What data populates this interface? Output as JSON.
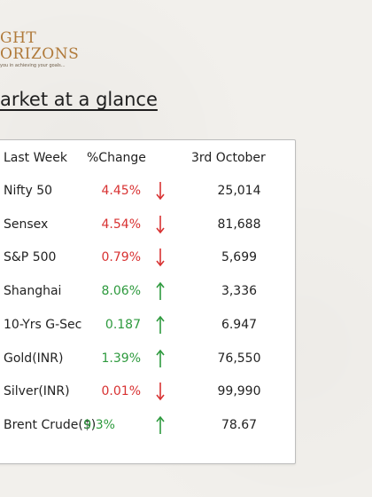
{
  "logo": {
    "line1": "GHT",
    "line2": "ORIZONS",
    "tagline": "you in achieving your goals..."
  },
  "page_title": "arket at a glance",
  "table": {
    "headers": {
      "name": "Last Week",
      "change": "%Change",
      "value": "3rd October"
    },
    "rows": [
      {
        "name": "Nifty 50",
        "change": "4.45%",
        "direction": "down",
        "value": "25,014"
      },
      {
        "name": "Sensex",
        "change": "4.54%",
        "direction": "down",
        "value": "81,688"
      },
      {
        "name": "S&P 500",
        "change": "0.79%",
        "direction": "down",
        "value": "5,699"
      },
      {
        "name": "Shanghai",
        "change": "8.06%",
        "direction": "up",
        "value": "3,336"
      },
      {
        "name": "10-Yrs G-Sec",
        "change": "0.187",
        "direction": "up",
        "value": "6.947"
      },
      {
        "name": "Gold(INR)",
        "change": "1.39%",
        "direction": "up",
        "value": "76,550"
      },
      {
        "name": "Silver(INR)",
        "change": "0.01%",
        "direction": "down",
        "value": "99,990"
      },
      {
        "name": "Brent Crude($)",
        "change": "9.3%",
        "direction": "up",
        "value": "78.67"
      }
    ]
  },
  "colors": {
    "down": "#d83232",
    "up": "#2e9a3e",
    "brand": "#b07a3a"
  }
}
